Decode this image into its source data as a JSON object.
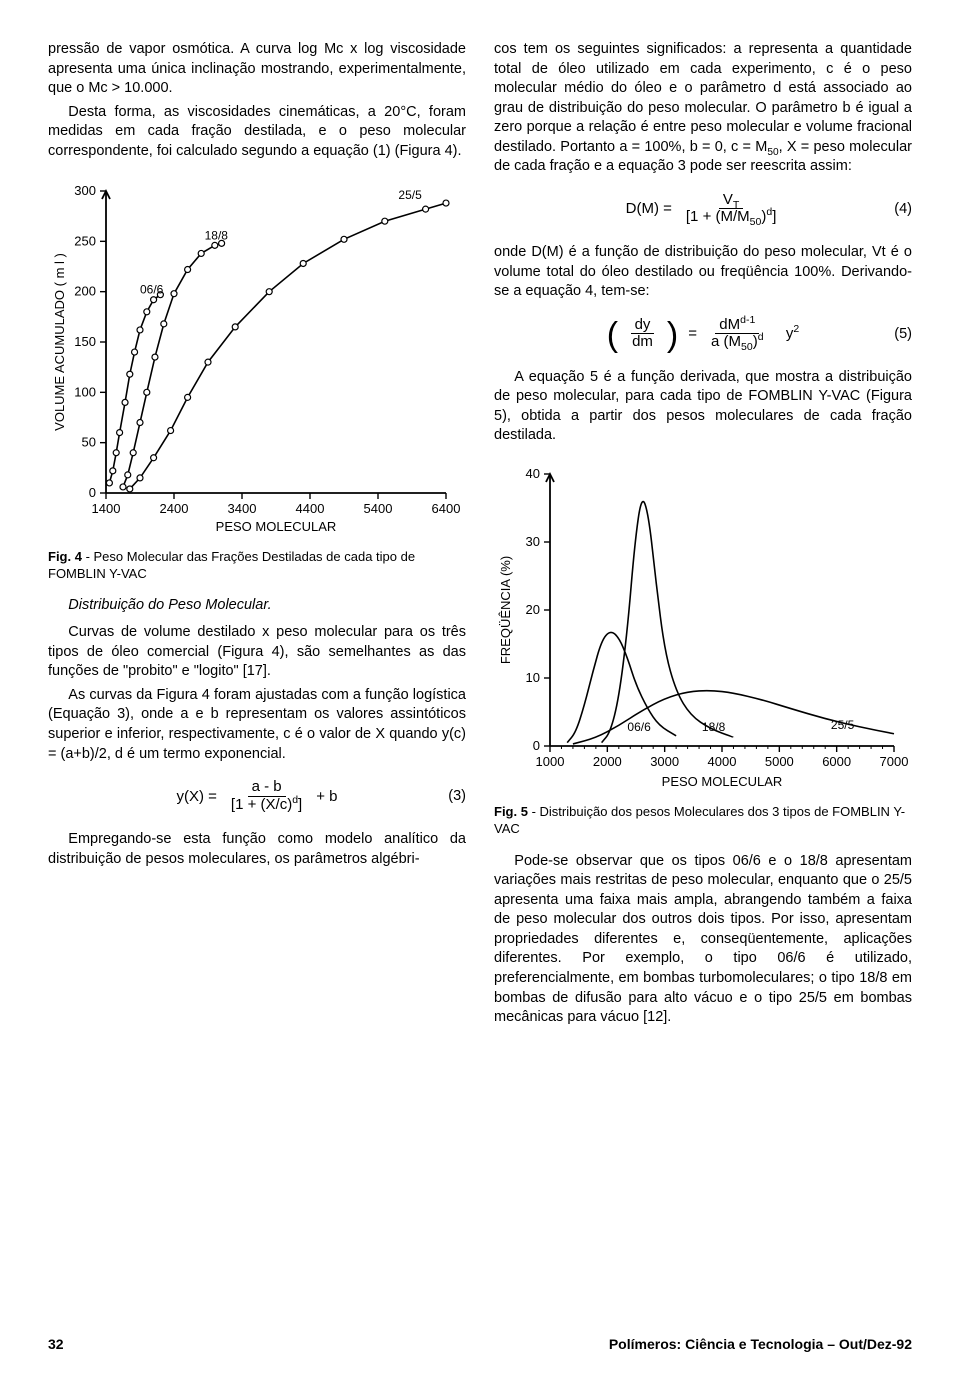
{
  "left": {
    "p1": "pressão de vapor osmótica. A curva log Mc x log viscosidade apresenta uma única inclinação mostrando, experimentalmente, que o Mc > 10.000.",
    "p2": "Desta forma, as viscosidades cinemáticas, a 20°C, foram medidas em cada fração destilada, e o peso molecular correspondente, foi calculado segundo a equação (1) (Figura 4).",
    "fig4_caption_bold": "Fig. 4",
    "fig4_caption_rest": " - Peso Molecular das Frações Destiladas de cada tipo de FOMBLIN Y-VAC",
    "subheading": "Distribuição do Peso Molecular.",
    "p3": "Curvas de volume destilado x peso molecular para os três tipos de óleo comercial (Figura 4), são semelhantes as das funções de \"probito\" e \"logito\" [17].",
    "p4": "As curvas da Figura 4 foram ajustadas com a função logística (Equação 3), onde a e b representam os valores assintóticos superior e inferior, respectivamente, c é o valor de X quando y(c) = (a+b)/2, d é um termo exponencial.",
    "eq3_lhs": "y(X)   =",
    "eq3_num": "a - b",
    "eq3_den": "[1 + (X/c)d]",
    "eq3_tail": "+   b",
    "eq3_label": "(3)",
    "p5": "Empregando-se esta função como modelo analítico da distribuição de pesos moleculares, os parâmetros algébri-"
  },
  "right": {
    "p1": "cos tem os seguintes significados: a representa a quantidade total de óleo utilizado em cada experimento, c é o peso molecular médio do óleo e o parâmetro d está associado ao grau de distribuição do peso molecular. O parâmetro b é igual a zero porque a relação é entre peso molecular e volume fracional destilado. Portanto a = 100%, b = 0, c = M50, X = peso molecular de cada fração e a equação 3 pode ser reescrita assim:",
    "eq4_lhs": "D(M)   =",
    "eq4_num": "VT",
    "eq4_den": "[1 + (M/M50)d]",
    "eq4_label": "(4)",
    "p2": "onde D(M) é a função de distribuição do peso molecular, Vt é o volume total do óleo destilado ou freqüência 100%. Derivando-se a equação 4, tem-se:",
    "eq5_frac1_num": "dy",
    "eq5_frac1_den": "dm",
    "eq5_mid": "=",
    "eq5_frac2_num": "dMd-1",
    "eq5_frac2_den": "a (M50)d",
    "eq5_tail": "y2",
    "eq5_label": "(5)",
    "p3": "A equação 5 é a função derivada, que mostra a distribuição de peso molecular, para cada tipo de FOMBLIN Y-VAC (Figura 5), obtida a partir dos pesos moleculares de cada fração destilada.",
    "fig5_caption_bold": "Fig. 5",
    "fig5_caption_rest": " - Distribuição dos pesos Moleculares dos 3 tipos de FOMBLIN Y-VAC",
    "p4": "Pode-se observar que os tipos 06/6 e o 18/8 apresentam variações mais restritas de peso molecular, enquanto que o 25/5 apresenta uma faixa mais ampla, abrangendo também a faixa de peso molecular dos outros dois tipos. Por isso, apresentam propriedades diferentes e, conseqüentemente, aplicações diferentes. Por exemplo, o tipo 06/6 é utilizado, preferencialmente, em bombas turbomoleculares; o tipo 18/8 em bombas de difusão para alto vácuo e o tipo 25/5 em bombas mecânicas para vácuo [12]."
  },
  "footer": {
    "page": "32",
    "journal": "Polímeros: Ciência e Tecnologia – Out/Dez-92"
  },
  "figure4": {
    "title_y": "VOLUME   ACUMULADO   ( m l )",
    "title_x": "PESO MOLECULAR",
    "xlim": [
      1400,
      6400
    ],
    "ylim": [
      0,
      300
    ],
    "xticks": [
      1400,
      2400,
      3400,
      4400,
      5400,
      6400
    ],
    "yticks": [
      0,
      50,
      100,
      150,
      200,
      250,
      300
    ],
    "series": {
      "06/6": {
        "label": "06/6",
        "label_xy": [
          1900,
          198
        ],
        "points": [
          [
            1450,
            10
          ],
          [
            1500,
            22
          ],
          [
            1550,
            40
          ],
          [
            1600,
            60
          ],
          [
            1680,
            90
          ],
          [
            1750,
            118
          ],
          [
            1820,
            140
          ],
          [
            1900,
            162
          ],
          [
            2000,
            180
          ],
          [
            2100,
            192
          ],
          [
            2200,
            197
          ]
        ],
        "color": "#000000"
      },
      "18/8": {
        "label": "18/8",
        "label_xy": [
          2850,
          252
        ],
        "points": [
          [
            1650,
            6
          ],
          [
            1720,
            18
          ],
          [
            1800,
            40
          ],
          [
            1900,
            70
          ],
          [
            2000,
            100
          ],
          [
            2120,
            135
          ],
          [
            2250,
            168
          ],
          [
            2400,
            198
          ],
          [
            2600,
            222
          ],
          [
            2800,
            238
          ],
          [
            3000,
            246
          ],
          [
            3100,
            248
          ]
        ],
        "color": "#000000"
      },
      "25/5": {
        "label": "25/5",
        "label_xy": [
          5700,
          292
        ],
        "points": [
          [
            1750,
            4
          ],
          [
            1900,
            15
          ],
          [
            2100,
            35
          ],
          [
            2350,
            62
          ],
          [
            2600,
            95
          ],
          [
            2900,
            130
          ],
          [
            3300,
            165
          ],
          [
            3800,
            200
          ],
          [
            4300,
            228
          ],
          [
            4900,
            252
          ],
          [
            5500,
            270
          ],
          [
            6100,
            282
          ],
          [
            6400,
            288
          ]
        ],
        "color": "#000000"
      }
    },
    "marker_r": 3,
    "line_w": 1.6,
    "axis_w": 1.8,
    "font_axis": 13,
    "font_label": 12
  },
  "figure5": {
    "title_y": "FREQÜÊNCIA  (%)",
    "title_x": "PESO MOLECULAR",
    "xlim": [
      1000,
      7000
    ],
    "ylim": [
      0,
      40
    ],
    "xticks": [
      1000,
      2000,
      3000,
      4000,
      5000,
      6000,
      7000
    ],
    "yticks": [
      0,
      10,
      20,
      30,
      40
    ],
    "curves": {
      "06/6": {
        "label": "06/6",
        "label_xy": [
          2350,
          2.2
        ],
        "points": [
          [
            1300,
            0.5
          ],
          [
            1450,
            2
          ],
          [
            1600,
            6
          ],
          [
            1750,
            11
          ],
          [
            1900,
            15.5
          ],
          [
            2050,
            17
          ],
          [
            2200,
            16
          ],
          [
            2350,
            13
          ],
          [
            2500,
            9
          ],
          [
            2700,
            5.5
          ],
          [
            2900,
            3
          ],
          [
            3200,
            1.5
          ]
        ],
        "color": "#000000"
      },
      "18/8": {
        "label": "18/8",
        "label_xy": [
          3650,
          2.2
        ],
        "points": [
          [
            1900,
            0.5
          ],
          [
            2050,
            2
          ],
          [
            2200,
            7
          ],
          [
            2350,
            17
          ],
          [
            2480,
            30
          ],
          [
            2600,
            37
          ],
          [
            2720,
            34
          ],
          [
            2850,
            24
          ],
          [
            3000,
            14
          ],
          [
            3200,
            8
          ],
          [
            3450,
            4.5
          ],
          [
            3800,
            2.5
          ],
          [
            4200,
            1.3
          ]
        ],
        "color": "#000000"
      },
      "25/5": {
        "label": "25/5",
        "label_xy": [
          5900,
          2.5
        ],
        "points": [
          [
            1400,
            0.3
          ],
          [
            1800,
            1.2
          ],
          [
            2200,
            3
          ],
          [
            2600,
            5.2
          ],
          [
            3000,
            7
          ],
          [
            3400,
            8
          ],
          [
            3800,
            8.2
          ],
          [
            4200,
            7.8
          ],
          [
            4700,
            6.8
          ],
          [
            5200,
            5.5
          ],
          [
            5800,
            4
          ],
          [
            6400,
            2.8
          ],
          [
            7000,
            1.8
          ]
        ],
        "color": "#000000"
      }
    },
    "line_w": 1.6,
    "axis_w": 1.8,
    "font_axis": 13,
    "font_label": 12
  }
}
